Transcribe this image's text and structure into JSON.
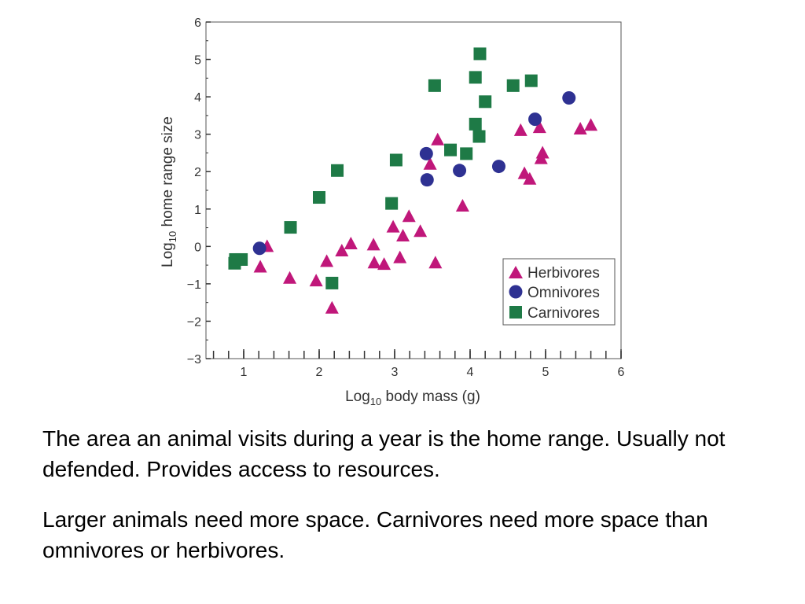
{
  "chart_data": {
    "type": "scatter",
    "xlabel": "Log10 body mass (g)",
    "ylabel": "Log10 home range size",
    "xlim": [
      0.5,
      6
    ],
    "ylim": [
      -3,
      6
    ],
    "xticks": [
      1,
      2,
      3,
      4,
      5,
      6
    ],
    "yticks": [
      -3,
      -2,
      -1,
      0,
      1,
      2,
      3,
      4,
      5,
      6
    ],
    "grid": false,
    "legend_position": "bottom-right",
    "series": [
      {
        "name": "Herbivores",
        "marker": "triangle",
        "color": "#c0177a",
        "points": [
          [
            1.22,
            -0.55
          ],
          [
            1.31,
            0.0
          ],
          [
            1.61,
            -0.85
          ],
          [
            1.96,
            -0.92
          ],
          [
            2.1,
            -0.4
          ],
          [
            2.17,
            -1.65
          ],
          [
            2.3,
            -0.12
          ],
          [
            2.42,
            0.07
          ],
          [
            2.72,
            0.04
          ],
          [
            2.73,
            -0.44
          ],
          [
            2.86,
            -0.48
          ],
          [
            2.98,
            0.52
          ],
          [
            3.07,
            -0.3
          ],
          [
            3.11,
            0.28
          ],
          [
            3.19,
            0.8
          ],
          [
            3.34,
            0.4
          ],
          [
            3.47,
            2.2
          ],
          [
            3.54,
            -0.44
          ],
          [
            3.57,
            2.85
          ],
          [
            3.9,
            1.08
          ],
          [
            4.67,
            3.1
          ],
          [
            4.72,
            1.95
          ],
          [
            4.79,
            1.8
          ],
          [
            4.92,
            3.18
          ],
          [
            4.94,
            2.35
          ],
          [
            4.96,
            2.5
          ],
          [
            5.46,
            3.14
          ],
          [
            5.6,
            3.24
          ]
        ]
      },
      {
        "name": "Omnivores",
        "marker": "circle",
        "color": "#2e3192",
        "points": [
          [
            1.21,
            -0.05
          ],
          [
            3.42,
            2.48
          ],
          [
            3.43,
            1.78
          ],
          [
            3.86,
            2.03
          ],
          [
            4.38,
            2.14
          ],
          [
            4.86,
            3.4
          ],
          [
            5.31,
            3.97
          ]
        ]
      },
      {
        "name": "Carnivores",
        "marker": "square",
        "color": "#1e7a46",
        "points": [
          [
            0.88,
            -0.45
          ],
          [
            0.89,
            -0.35
          ],
          [
            0.97,
            -0.35
          ],
          [
            1.62,
            0.51
          ],
          [
            2.0,
            1.31
          ],
          [
            2.17,
            -0.98
          ],
          [
            2.24,
            2.03
          ],
          [
            2.96,
            1.15
          ],
          [
            3.02,
            2.31
          ],
          [
            3.53,
            4.3
          ],
          [
            3.74,
            2.58
          ],
          [
            3.95,
            2.48
          ],
          [
            4.07,
            4.52
          ],
          [
            4.07,
            3.27
          ],
          [
            4.12,
            2.94
          ],
          [
            4.13,
            5.15
          ],
          [
            4.2,
            3.87
          ],
          [
            4.57,
            4.3
          ],
          [
            4.81,
            4.43
          ]
        ]
      }
    ]
  },
  "axis_titles": {
    "y_prefix": "Log",
    "y_sub": "10",
    "y_rest": " home range size",
    "x_prefix": "Log",
    "x_sub": "10",
    "x_rest": " body mass (g)"
  },
  "legend": {
    "herbivores": "Herbivores",
    "omnivores": "Omnivores",
    "carnivores": "Carnivores"
  },
  "caption": {
    "p1": "The area an animal visits during a year is the home range.  Usually not defended.  Provides access to resources.",
    "p2": "Larger animals need more space.  Carnivores need more space than omnivores or herbivores."
  }
}
